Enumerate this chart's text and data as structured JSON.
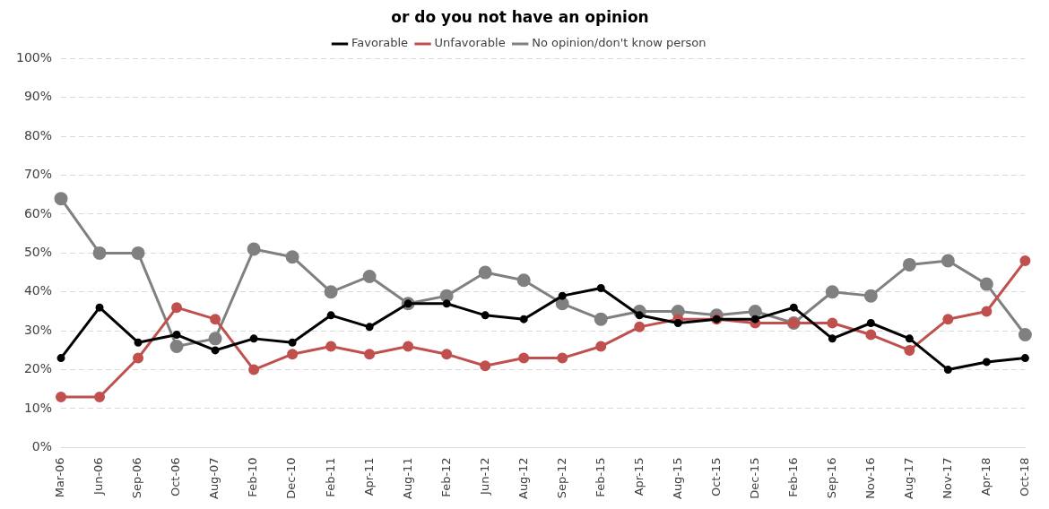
{
  "chart_data": {
    "type": "line",
    "title": "or do you not have an opinion",
    "categories": [
      "Mar-06",
      "Jun-06",
      "Sep-06",
      "Oct-06",
      "Aug-07",
      "Feb-10",
      "Dec-10",
      "Feb-11",
      "Apr-11",
      "Aug-11",
      "Feb-12",
      "Jun-12",
      "Aug-12",
      "Sep-12",
      "Feb-15",
      "Apr-15",
      "Aug-15",
      "Oct-15",
      "Dec-15",
      "Feb-16",
      "Sep-16",
      "Nov-16",
      "Aug-17",
      "Nov-17",
      "Apr-18",
      "Oct-18"
    ],
    "series": [
      {
        "name": "Favorable",
        "color": "#000000",
        "values": [
          23,
          36,
          27,
          29,
          25,
          28,
          27,
          34,
          31,
          37,
          37,
          34,
          33,
          39,
          41,
          34,
          32,
          33,
          33,
          36,
          28,
          32,
          28,
          20,
          22,
          23
        ]
      },
      {
        "name": "Unfavorable",
        "color": "#c0504d",
        "values": [
          13,
          13,
          23,
          36,
          33,
          20,
          24,
          26,
          24,
          26,
          24,
          21,
          23,
          23,
          26,
          31,
          33,
          33,
          32,
          32,
          32,
          29,
          25,
          33,
          35,
          48
        ]
      },
      {
        "name": "No opinion/don't know person",
        "color": "#808080",
        "values": [
          64,
          50,
          50,
          26,
          28,
          51,
          49,
          40,
          44,
          37,
          39,
          45,
          43,
          37,
          33,
          35,
          35,
          34,
          35,
          32,
          40,
          39,
          47,
          48,
          42,
          29
        ]
      }
    ],
    "ylim": [
      0,
      100
    ],
    "yticks": [
      {
        "value": 0,
        "label": "0%"
      },
      {
        "value": 10,
        "label": "10%"
      },
      {
        "value": 20,
        "label": "20%"
      },
      {
        "value": 30,
        "label": "30%"
      },
      {
        "value": 40,
        "label": "40%"
      },
      {
        "value": 50,
        "label": "50%"
      },
      {
        "value": 60,
        "label": "60%"
      },
      {
        "value": 70,
        "label": "70%"
      },
      {
        "value": 80,
        "label": "80%"
      },
      {
        "value": 90,
        "label": "90%"
      },
      {
        "value": 100,
        "label": "100%"
      }
    ],
    "grid": "y",
    "legend": "top",
    "marker": "circle",
    "line_style": "solid"
  }
}
